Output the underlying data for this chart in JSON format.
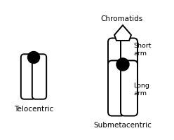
{
  "bg_color": "#ffffff",
  "line_color": "#000000",
  "centromere_color": "#000000",
  "title_color": "#000000",
  "label_telocentric": "Telocentric",
  "label_submetacentric": "Submetacentric",
  "label_chromatids": "Chromatids",
  "label_short_arm": "Short\narm",
  "label_long_arm": "Long\narm",
  "fontsize_main": 7.5,
  "fontsize_label": 6.8
}
